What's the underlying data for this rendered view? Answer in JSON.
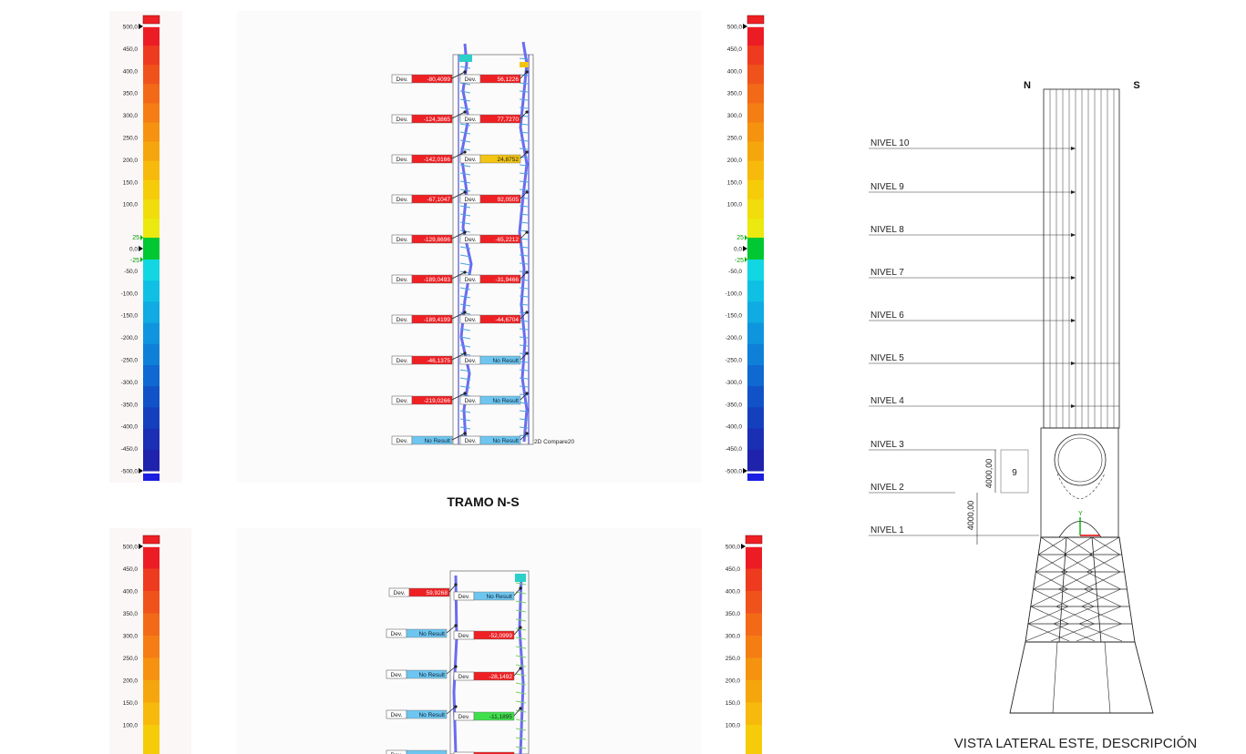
{
  "scale_labels": [
    "500,0",
    "450,0",
    "400,0",
    "350,0",
    "300,0",
    "250,0",
    "200,0",
    "150,0",
    "100,0",
    "50,0",
    "0,0",
    "-50,0",
    "-100,0",
    "-150,0",
    "-200,0",
    "-250,0",
    "-300,0",
    "-350,0",
    "-400,0",
    "-450,0",
    "-500,0"
  ],
  "scale_tol": [
    "25",
    "-25"
  ],
  "scale_labels_bottom": [
    "500,0",
    "450,0",
    "400,0",
    "350,0",
    "300,0",
    "250,0",
    "200,0",
    "150,0",
    "100,0"
  ],
  "colors": {
    "scale_bands": [
      "#ec1c24",
      "#ee3b1f",
      "#f0521c",
      "#f26a18",
      "#f47e14",
      "#f59310",
      "#f6a60d",
      "#f7b90b",
      "#f5cb0a",
      "#f1dc0c",
      "#ebe910",
      "#e3f21a",
      "#00c832",
      "#12d6e2",
      "#10c0e4",
      "#0fabe2",
      "#0f95de",
      "#0f80d8",
      "#0f69d0",
      "#1152c6",
      "#1540bd",
      "#1a2fb3",
      "#1f22aa"
    ],
    "red": "#ee2024",
    "blue_box": "#6ec6f0",
    "yellow_box": "#f2c413",
    "green_box": "#3fe04b",
    "column": "#6a6cf0"
  },
  "top_rows": [
    {
      "left": "-80,4099",
      "left_c": "red",
      "right": "56,1226",
      "right_c": "red"
    },
    {
      "left": "-124,3865",
      "left_c": "red",
      "right": "77,7270",
      "right_c": "red"
    },
    {
      "left": "-142,0166",
      "left_c": "red",
      "right": "24,8752",
      "right_c": "yellow"
    },
    {
      "left": "-67,1047",
      "left_c": "red",
      "right": "92,0505",
      "right_c": "red"
    },
    {
      "left": "-129,8696",
      "left_c": "red",
      "right": "-65,2212",
      "right_c": "red"
    },
    {
      "left": "-189,0493",
      "left_c": "red",
      "right": "-31,9466",
      "right_c": "red"
    },
    {
      "left": "-189,4199",
      "left_c": "red",
      "right": "-44,6704",
      "right_c": "red"
    },
    {
      "left": "-46,1375",
      "left_c": "red",
      "right": "No Result",
      "right_c": "blue"
    },
    {
      "left": "-219,0266",
      "left_c": "red",
      "right": "No Result",
      "right_c": "blue"
    },
    {
      "left": "No Result",
      "left_c": "blue",
      "right": "No Result",
      "right_c": "blue"
    }
  ],
  "bottom_rows": [
    {
      "left": "59,9268",
      "left_c": "red",
      "right": "No Result",
      "right_c": "blue"
    },
    {
      "left": "No Result",
      "left_c": "blue",
      "right": "-52,0999",
      "right_c": "red"
    },
    {
      "left": "No Result",
      "left_c": "blue",
      "right": "-28,1492",
      "right_c": "red"
    },
    {
      "left": "No Result",
      "left_c": "blue",
      "right": "-11,1895",
      "right_c": "green"
    }
  ],
  "dev_label": "Dev.",
  "compare_label": "2D Compare20",
  "section_title": "TRAMO N-S",
  "elevation": {
    "north": "N",
    "south": "S",
    "levels": [
      "NIVEL 10",
      "NIVEL 9",
      "NIVEL 8",
      "NIVEL 7",
      "NIVEL 6",
      "NIVEL 5",
      "NIVEL 4",
      "NIVEL 3",
      "NIVEL 2",
      "NIVEL 1"
    ],
    "dim_upper": "4000,00",
    "dim_lower": "4000,00",
    "box_label": "9",
    "axis_y": "Y",
    "caption": "VISTA LATERAL ESTE, DESCRIPCIÓN"
  }
}
